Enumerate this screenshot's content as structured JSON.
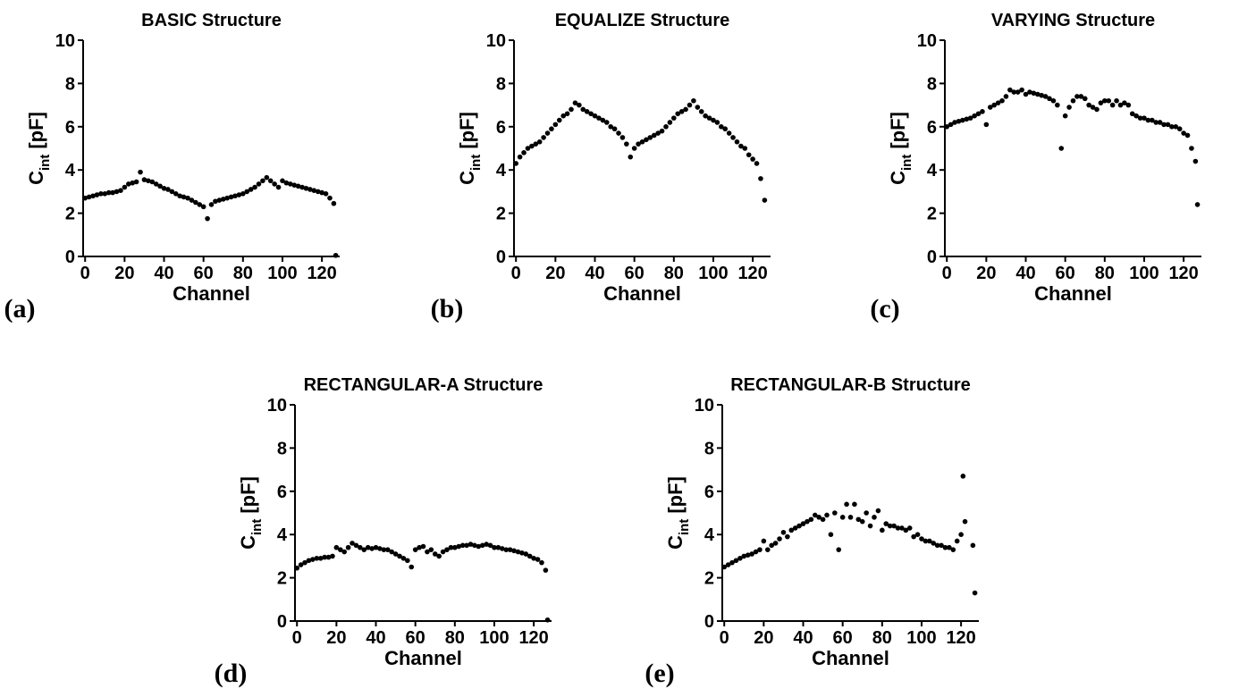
{
  "chart_data": [
    {
      "type": "scatter",
      "title": "BASIC Structure",
      "panel_label": "(a)",
      "xlabel": "Channel",
      "ylabel": "C",
      "ylabel_subscript": "int",
      "ylabel_unit": "[pF]",
      "color": "#000000",
      "xlim": [
        -1,
        129
      ],
      "xticks": [
        0,
        20,
        40,
        60,
        80,
        100,
        120
      ],
      "ylim": [
        0,
        10
      ],
      "yticks": [
        0,
        2,
        4,
        6,
        8,
        10
      ],
      "x": [
        0,
        2,
        4,
        6,
        8,
        10,
        12,
        14,
        16,
        18,
        20,
        22,
        24,
        26,
        28,
        30,
        32,
        34,
        36,
        38,
        40,
        42,
        44,
        46,
        48,
        50,
        52,
        54,
        56,
        58,
        60,
        62,
        64,
        66,
        68,
        70,
        72,
        74,
        76,
        78,
        80,
        82,
        84,
        86,
        88,
        90,
        92,
        94,
        96,
        98,
        100,
        102,
        104,
        106,
        108,
        110,
        112,
        114,
        116,
        118,
        120,
        122,
        124,
        126,
        127
      ],
      "values": [
        2.7,
        2.75,
        2.8,
        2.85,
        2.9,
        2.9,
        2.95,
        2.95,
        3.0,
        3.05,
        3.2,
        3.35,
        3.4,
        3.45,
        3.9,
        3.55,
        3.5,
        3.45,
        3.35,
        3.25,
        3.15,
        3.1,
        3.0,
        2.9,
        2.8,
        2.75,
        2.7,
        2.6,
        2.5,
        2.4,
        2.3,
        1.75,
        2.4,
        2.55,
        2.6,
        2.65,
        2.7,
        2.75,
        2.8,
        2.85,
        2.9,
        3.0,
        3.1,
        3.2,
        3.35,
        3.5,
        3.65,
        3.5,
        3.35,
        3.2,
        3.5,
        3.4,
        3.35,
        3.3,
        3.25,
        3.2,
        3.15,
        3.1,
        3.05,
        3.0,
        2.95,
        2.9,
        2.7,
        2.45,
        0.05
      ]
    },
    {
      "type": "scatter",
      "title": "EQUALIZE Structure",
      "panel_label": "(b)",
      "xlabel": "Channel",
      "ylabel": "C",
      "ylabel_subscript": "int",
      "ylabel_unit": "[pF]",
      "color": "#000000",
      "xlim": [
        -1,
        129
      ],
      "xticks": [
        0,
        20,
        40,
        60,
        80,
        100,
        120
      ],
      "ylim": [
        0,
        10
      ],
      "yticks": [
        0,
        2,
        4,
        6,
        8,
        10
      ],
      "x": [
        0,
        2,
        4,
        6,
        8,
        10,
        12,
        14,
        16,
        18,
        20,
        22,
        24,
        26,
        28,
        30,
        32,
        34,
        36,
        38,
        40,
        42,
        44,
        46,
        48,
        50,
        52,
        54,
        56,
        58,
        60,
        62,
        64,
        66,
        68,
        70,
        72,
        74,
        76,
        78,
        80,
        82,
        84,
        86,
        88,
        90,
        92,
        94,
        96,
        98,
        100,
        102,
        104,
        106,
        108,
        110,
        112,
        114,
        116,
        118,
        120,
        122,
        124,
        126
      ],
      "values": [
        4.3,
        4.6,
        4.8,
        5.0,
        5.1,
        5.2,
        5.3,
        5.5,
        5.7,
        5.9,
        6.1,
        6.3,
        6.5,
        6.6,
        6.8,
        7.1,
        7.0,
        6.8,
        6.7,
        6.6,
        6.5,
        6.4,
        6.3,
        6.2,
        6.0,
        5.9,
        5.7,
        5.5,
        5.2,
        4.6,
        5.0,
        5.2,
        5.3,
        5.4,
        5.5,
        5.6,
        5.7,
        5.8,
        6.0,
        6.2,
        6.4,
        6.6,
        6.7,
        6.8,
        7.0,
        7.2,
        6.9,
        6.7,
        6.5,
        6.4,
        6.3,
        6.2,
        6.0,
        5.9,
        5.7,
        5.5,
        5.3,
        5.1,
        5.0,
        4.7,
        4.5,
        4.3,
        3.6,
        2.6
      ]
    },
    {
      "type": "scatter",
      "title": "VARYING Structure",
      "panel_label": "(c)",
      "xlabel": "Channel",
      "ylabel": "C",
      "ylabel_subscript": "int",
      "ylabel_unit": "[pF]",
      "color": "#000000",
      "xlim": [
        -1,
        129
      ],
      "xticks": [
        0,
        20,
        40,
        60,
        80,
        100,
        120
      ],
      "ylim": [
        0,
        10
      ],
      "yticks": [
        0,
        2,
        4,
        6,
        8,
        10
      ],
      "x": [
        0,
        2,
        4,
        6,
        8,
        10,
        12,
        14,
        16,
        18,
        20,
        22,
        24,
        26,
        28,
        30,
        32,
        34,
        36,
        38,
        40,
        42,
        44,
        46,
        48,
        50,
        52,
        54,
        56,
        58,
        60,
        62,
        64,
        66,
        68,
        70,
        72,
        74,
        76,
        78,
        80,
        82,
        84,
        86,
        88,
        90,
        92,
        94,
        96,
        98,
        100,
        102,
        104,
        106,
        108,
        110,
        112,
        114,
        116,
        118,
        120,
        122,
        124,
        126,
        127
      ],
      "values": [
        6.0,
        6.1,
        6.2,
        6.25,
        6.3,
        6.35,
        6.4,
        6.5,
        6.6,
        6.7,
        6.1,
        6.9,
        7.0,
        7.1,
        7.2,
        7.4,
        7.7,
        7.6,
        7.6,
        7.7,
        7.5,
        7.6,
        7.55,
        7.5,
        7.45,
        7.4,
        7.3,
        7.2,
        7.0,
        5.0,
        6.5,
        6.9,
        7.2,
        7.4,
        7.4,
        7.3,
        7.0,
        6.9,
        6.8,
        7.1,
        7.2,
        7.2,
        7.0,
        7.2,
        7.0,
        7.1,
        7.0,
        6.6,
        6.5,
        6.4,
        6.4,
        6.3,
        6.3,
        6.2,
        6.2,
        6.1,
        6.1,
        6.0,
        6.0,
        5.9,
        5.7,
        5.6,
        5.0,
        4.4,
        2.4
      ]
    },
    {
      "type": "scatter",
      "title": "RECTANGULAR-A Structure",
      "panel_label": "(d)",
      "xlabel": "Channel",
      "ylabel": "C",
      "ylabel_subscript": "int",
      "ylabel_unit": "[pF]",
      "color": "#000000",
      "xlim": [
        -1,
        129
      ],
      "xticks": [
        0,
        20,
        40,
        60,
        80,
        100,
        120
      ],
      "ylim": [
        0,
        10
      ],
      "yticks": [
        0,
        2,
        4,
        6,
        8,
        10
      ],
      "x": [
        0,
        2,
        4,
        6,
        8,
        10,
        12,
        14,
        16,
        18,
        20,
        22,
        24,
        26,
        28,
        30,
        32,
        34,
        36,
        38,
        40,
        42,
        44,
        46,
        48,
        50,
        52,
        54,
        56,
        58,
        60,
        62,
        64,
        66,
        68,
        70,
        72,
        74,
        76,
        78,
        80,
        82,
        84,
        86,
        88,
        90,
        92,
        94,
        96,
        98,
        100,
        102,
        104,
        106,
        108,
        110,
        112,
        114,
        116,
        118,
        120,
        122,
        124,
        126,
        127
      ],
      "values": [
        2.45,
        2.6,
        2.7,
        2.8,
        2.85,
        2.9,
        2.9,
        2.95,
        2.95,
        3.0,
        3.4,
        3.3,
        3.2,
        3.4,
        3.6,
        3.5,
        3.4,
        3.3,
        3.4,
        3.35,
        3.4,
        3.35,
        3.3,
        3.3,
        3.2,
        3.1,
        3.0,
        2.9,
        2.8,
        2.5,
        3.3,
        3.4,
        3.45,
        3.2,
        3.3,
        3.1,
        3.0,
        3.2,
        3.3,
        3.4,
        3.4,
        3.45,
        3.5,
        3.5,
        3.55,
        3.5,
        3.45,
        3.5,
        3.55,
        3.5,
        3.4,
        3.4,
        3.35,
        3.3,
        3.3,
        3.25,
        3.2,
        3.15,
        3.1,
        3.0,
        2.9,
        2.85,
        2.7,
        2.35,
        0.05
      ]
    },
    {
      "type": "scatter",
      "title": "RECTANGULAR-B Structure",
      "panel_label": "(e)",
      "xlabel": "Channel",
      "ylabel": "C",
      "ylabel_subscript": "int",
      "ylabel_unit": "[pF]",
      "color": "#000000",
      "xlim": [
        -1,
        129
      ],
      "xticks": [
        0,
        20,
        40,
        60,
        80,
        100,
        120
      ],
      "ylim": [
        0,
        10
      ],
      "yticks": [
        0,
        2,
        4,
        6,
        8,
        10
      ],
      "x": [
        0,
        2,
        4,
        6,
        8,
        10,
        12,
        14,
        16,
        18,
        20,
        22,
        24,
        26,
        28,
        30,
        32,
        34,
        36,
        38,
        40,
        42,
        44,
        46,
        48,
        50,
        52,
        54,
        56,
        58,
        60,
        62,
        64,
        66,
        68,
        70,
        72,
        74,
        76,
        78,
        80,
        82,
        84,
        86,
        88,
        90,
        92,
        94,
        96,
        98,
        100,
        102,
        104,
        106,
        108,
        110,
        112,
        114,
        116,
        118,
        120,
        121,
        122,
        126,
        127
      ],
      "values": [
        2.5,
        2.6,
        2.7,
        2.8,
        2.9,
        3.0,
        3.05,
        3.1,
        3.2,
        3.3,
        3.7,
        3.3,
        3.5,
        3.6,
        3.8,
        4.1,
        3.9,
        4.2,
        4.3,
        4.4,
        4.5,
        4.6,
        4.7,
        4.9,
        4.8,
        4.7,
        4.9,
        4.0,
        5.0,
        3.3,
        4.8,
        5.4,
        4.8,
        5.4,
        4.7,
        4.6,
        5.0,
        4.4,
        4.8,
        5.1,
        4.2,
        4.5,
        4.4,
        4.4,
        4.3,
        4.3,
        4.2,
        4.3,
        3.9,
        4.0,
        3.8,
        3.7,
        3.7,
        3.6,
        3.5,
        3.5,
        3.4,
        3.4,
        3.3,
        3.7,
        4.0,
        6.7,
        4.6,
        3.5,
        1.3
      ]
    }
  ]
}
